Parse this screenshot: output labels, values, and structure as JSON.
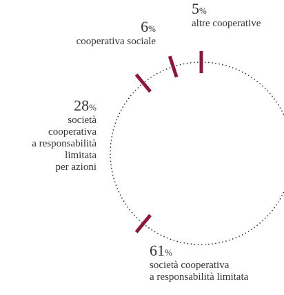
{
  "chart_data": {
    "type": "pie",
    "categories": [
      "altre cooperative",
      "cooperativa sociale",
      "società\ncooperativa\na responsabilità\nlimitata\nper azioni",
      "società cooperativa\na responsabilità limitata"
    ],
    "values": [
      5,
      6,
      28,
      61
    ],
    "value_labels": [
      "5%",
      "6%",
      "28%",
      "61%"
    ],
    "color": "#8b1a3a"
  }
}
